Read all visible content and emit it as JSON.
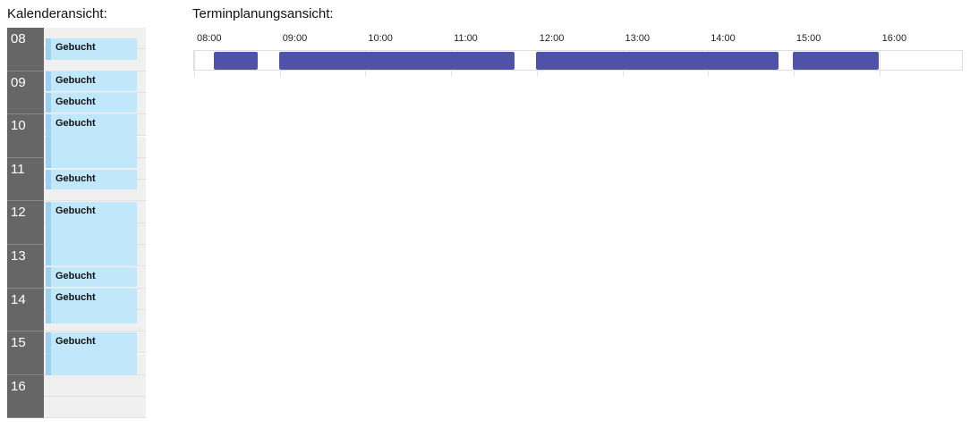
{
  "left": {
    "title": "Kalenderansicht:",
    "hours": [
      "08",
      "09",
      "10",
      "11",
      "12",
      "13",
      "14",
      "15",
      "16"
    ],
    "events": [
      {
        "label": "Gebucht"
      },
      {
        "label": "Gebucht"
      },
      {
        "label": "Gebucht"
      },
      {
        "label": "Gebucht"
      },
      {
        "label": "Gebucht"
      },
      {
        "label": "Gebucht"
      },
      {
        "label": "Gebucht"
      },
      {
        "label": "Gebucht"
      },
      {
        "label": "Gebucht"
      }
    ]
  },
  "right": {
    "title": "Terminplanungsansicht:",
    "times": [
      "08:00",
      "09:00",
      "10:00",
      "11:00",
      "12:00",
      "13:00",
      "14:00",
      "15:00",
      "16:00"
    ]
  }
}
